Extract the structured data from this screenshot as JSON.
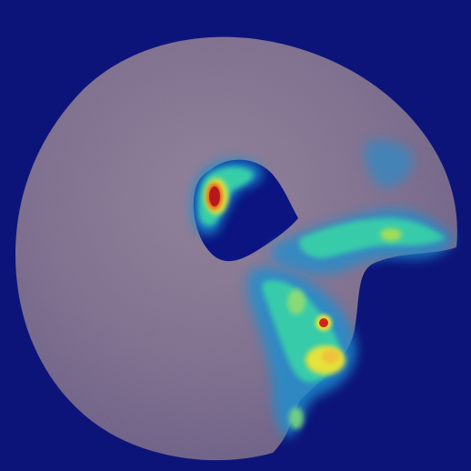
{
  "scene": {
    "subject": "bitten-donut-anomaly-heatmap",
    "colors": {
      "background": "#0d1479",
      "donut_body": "#7f6f8f",
      "donut_edge": "#6c5f86",
      "donut_highlight": "#8f7f99",
      "hole": "#0b1480",
      "heat_low": "#1f8fd0",
      "heat_mid": "#39d3a8",
      "heat_high": "#e4e23a",
      "heat_peak": "#d42318"
    }
  }
}
